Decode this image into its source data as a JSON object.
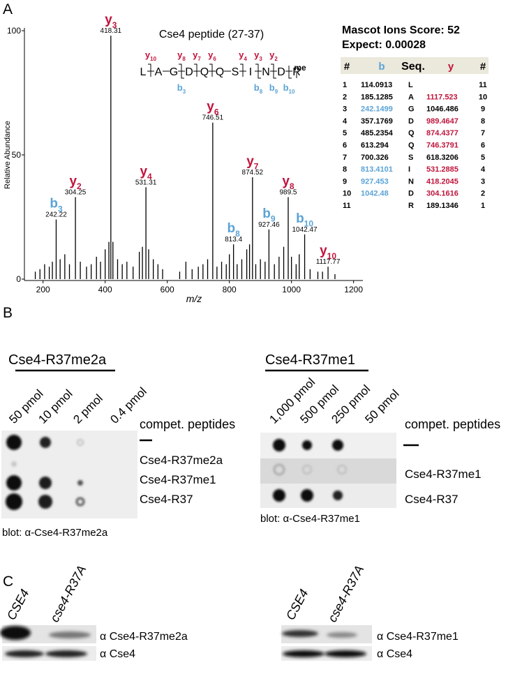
{
  "panels": {
    "a": "A",
    "b": "B",
    "c": "C"
  },
  "chart_data": {
    "type": "stem",
    "xlabel": "m/z",
    "ylabel": "Relative Abundance",
    "xlim": [
      140,
      1230
    ],
    "ylim": [
      0,
      100
    ],
    "xticks": [
      200,
      400,
      600,
      800,
      1000,
      1200
    ],
    "yticks": [
      0,
      50,
      100
    ],
    "color": "#000000",
    "ion_colors": {
      "y": "#c0143c",
      "b": "#5ba3d6"
    },
    "x": [
      175,
      190,
      205,
      220,
      230,
      242.22,
      255,
      270,
      285,
      304.25,
      320,
      340,
      355,
      372,
      385,
      400,
      412,
      418.31,
      425,
      440,
      455,
      470,
      490,
      510,
      520,
      531.31,
      540,
      555,
      570,
      585,
      640,
      660,
      680,
      700,
      715,
      730,
      746.51,
      760,
      775,
      790,
      800,
      813.4,
      825,
      840,
      856,
      865,
      874.52,
      885,
      900,
      915,
      927.46,
      945,
      960,
      975,
      989.5,
      1000,
      1015,
      1025,
      1042.47,
      1060,
      1085,
      1100,
      1117.77,
      1140
    ],
    "values": [
      3,
      4,
      6,
      5,
      7,
      24,
      8,
      10,
      6,
      33,
      7,
      5,
      6,
      9,
      7,
      12,
      15,
      98,
      15,
      8,
      6,
      7,
      5,
      11,
      13,
      37,
      12,
      8,
      6,
      4,
      3,
      7,
      4,
      5,
      6,
      8,
      63,
      5,
      7,
      6,
      10,
      14,
      6,
      8,
      12,
      14,
      41,
      6,
      8,
      7,
      20,
      6,
      9,
      13,
      33,
      9,
      6,
      10,
      18,
      4,
      3,
      3,
      5,
      2
    ],
    "ion": [
      null,
      null,
      null,
      null,
      null,
      "b",
      null,
      null,
      null,
      "y",
      null,
      null,
      null,
      null,
      null,
      null,
      null,
      "y",
      null,
      null,
      null,
      null,
      null,
      null,
      null,
      "y",
      null,
      null,
      null,
      null,
      null,
      null,
      null,
      null,
      null,
      null,
      "y",
      null,
      null,
      null,
      null,
      "b",
      null,
      null,
      null,
      null,
      "y",
      null,
      null,
      null,
      "b",
      null,
      null,
      null,
      "y",
      null,
      null,
      null,
      "b",
      null,
      null,
      null,
      "y",
      null
    ],
    "ion_index": [
      null,
      null,
      null,
      null,
      null,
      "3",
      null,
      null,
      null,
      "2",
      null,
      null,
      null,
      null,
      null,
      null,
      null,
      "3",
      null,
      null,
      null,
      null,
      null,
      null,
      null,
      "4",
      null,
      null,
      null,
      null,
      null,
      null,
      null,
      null,
      null,
      null,
      "6",
      null,
      null,
      null,
      null,
      "8",
      null,
      null,
      null,
      null,
      "7",
      null,
      null,
      null,
      "9",
      null,
      null,
      null,
      "8",
      null,
      null,
      null,
      "10",
      null,
      null,
      null,
      "10",
      null
    ]
  },
  "peptide": {
    "title": "Cse4 peptide (27-37)",
    "residues": [
      "L",
      "A",
      "G",
      "D",
      "Q",
      "Q",
      "S",
      "I",
      "N",
      "D",
      "R"
    ],
    "modification": "me",
    "y_fragments": [
      {
        "ion": "y",
        "n": "10"
      },
      {
        "ion": "y",
        "n": "8"
      },
      {
        "ion": "y",
        "n": "7"
      },
      {
        "ion": "y",
        "n": "6"
      },
      {
        "ion": "y",
        "n": "4"
      },
      {
        "ion": "y",
        "n": "3"
      },
      {
        "ion": "y",
        "n": "2"
      }
    ],
    "b_fragments": [
      {
        "ion": "b",
        "n": "3"
      },
      {
        "ion": "b",
        "n": "8"
      },
      {
        "ion": "b",
        "n": "9"
      },
      {
        "ion": "b",
        "n": "10"
      }
    ]
  },
  "mascot": {
    "score": "Mascot Ions Score: 52",
    "expect": "Expect: 0.00028",
    "header": [
      "#",
      "b",
      "Seq.",
      "y",
      "#"
    ],
    "rows": [
      {
        "cells": [
          "1",
          "114.0913",
          "L",
          null,
          "11"
        ],
        "b_match": false,
        "y_match": false
      },
      {
        "cells": [
          "2",
          "185.1285",
          "A",
          "1117.523",
          "10"
        ],
        "b_match": false,
        "y_match": true
      },
      {
        "cells": [
          "3",
          "242.1499",
          "G",
          "1046.486",
          "9"
        ],
        "b_match": true,
        "y_match": false
      },
      {
        "cells": [
          "4",
          "357.1769",
          "D",
          "989.4647",
          "8"
        ],
        "b_match": false,
        "y_match": true
      },
      {
        "cells": [
          "5",
          "485.2354",
          "Q",
          "874.4377",
          "7"
        ],
        "b_match": false,
        "y_match": true
      },
      {
        "cells": [
          "6",
          "613.294",
          "Q",
          "746.3791",
          "6"
        ],
        "b_match": false,
        "y_match": true
      },
      {
        "cells": [
          "7",
          "700.326",
          "S",
          "618.3206",
          "5"
        ],
        "b_match": false,
        "y_match": false
      },
      {
        "cells": [
          "8",
          "813.4101",
          "I",
          "531.2885",
          "4"
        ],
        "b_match": true,
        "y_match": true
      },
      {
        "cells": [
          "9",
          "927.453",
          "N",
          "418.2045",
          "3"
        ],
        "b_match": true,
        "y_match": true
      },
      {
        "cells": [
          "10",
          "1042.48",
          "D",
          "304.1616",
          "2"
        ],
        "b_match": true,
        "y_match": true
      },
      {
        "cells": [
          "11",
          null,
          "R",
          "189.1346",
          "1"
        ],
        "b_match": false,
        "y_match": false
      }
    ]
  },
  "blot_left": {
    "title": "Cse4-R37me2a",
    "columns": [
      "50 pmol",
      "10 pmol",
      "2 pmol",
      "0.4 pmol"
    ],
    "compet": "compet. peptides",
    "rows": [
      "Cse4-R37me2a",
      "Cse4-R37me1",
      "Cse4-R37"
    ],
    "caption": "blot: α-Cse4-R37me2a"
  },
  "blot_right": {
    "title": "Cse4-R37me1",
    "columns": [
      "1,000 pmol",
      "500 pmol",
      "250 pmol",
      "50 pmol"
    ],
    "compet": "compet. peptides",
    "rows": [
      "Cse4-R37me1",
      "Cse4-R37"
    ],
    "caption": "blot: α-Cse4-R37me1"
  },
  "western_left": {
    "lanes": [
      "CSE4",
      "cse4-R37A"
    ],
    "antibodies": [
      "α Cse4-R37me2a",
      "α Cse4"
    ]
  },
  "western_right": {
    "lanes": [
      "CSE4",
      "cse4-R37A"
    ],
    "antibodies": [
      "α Cse4-R37me1",
      "α Cse4"
    ]
  }
}
